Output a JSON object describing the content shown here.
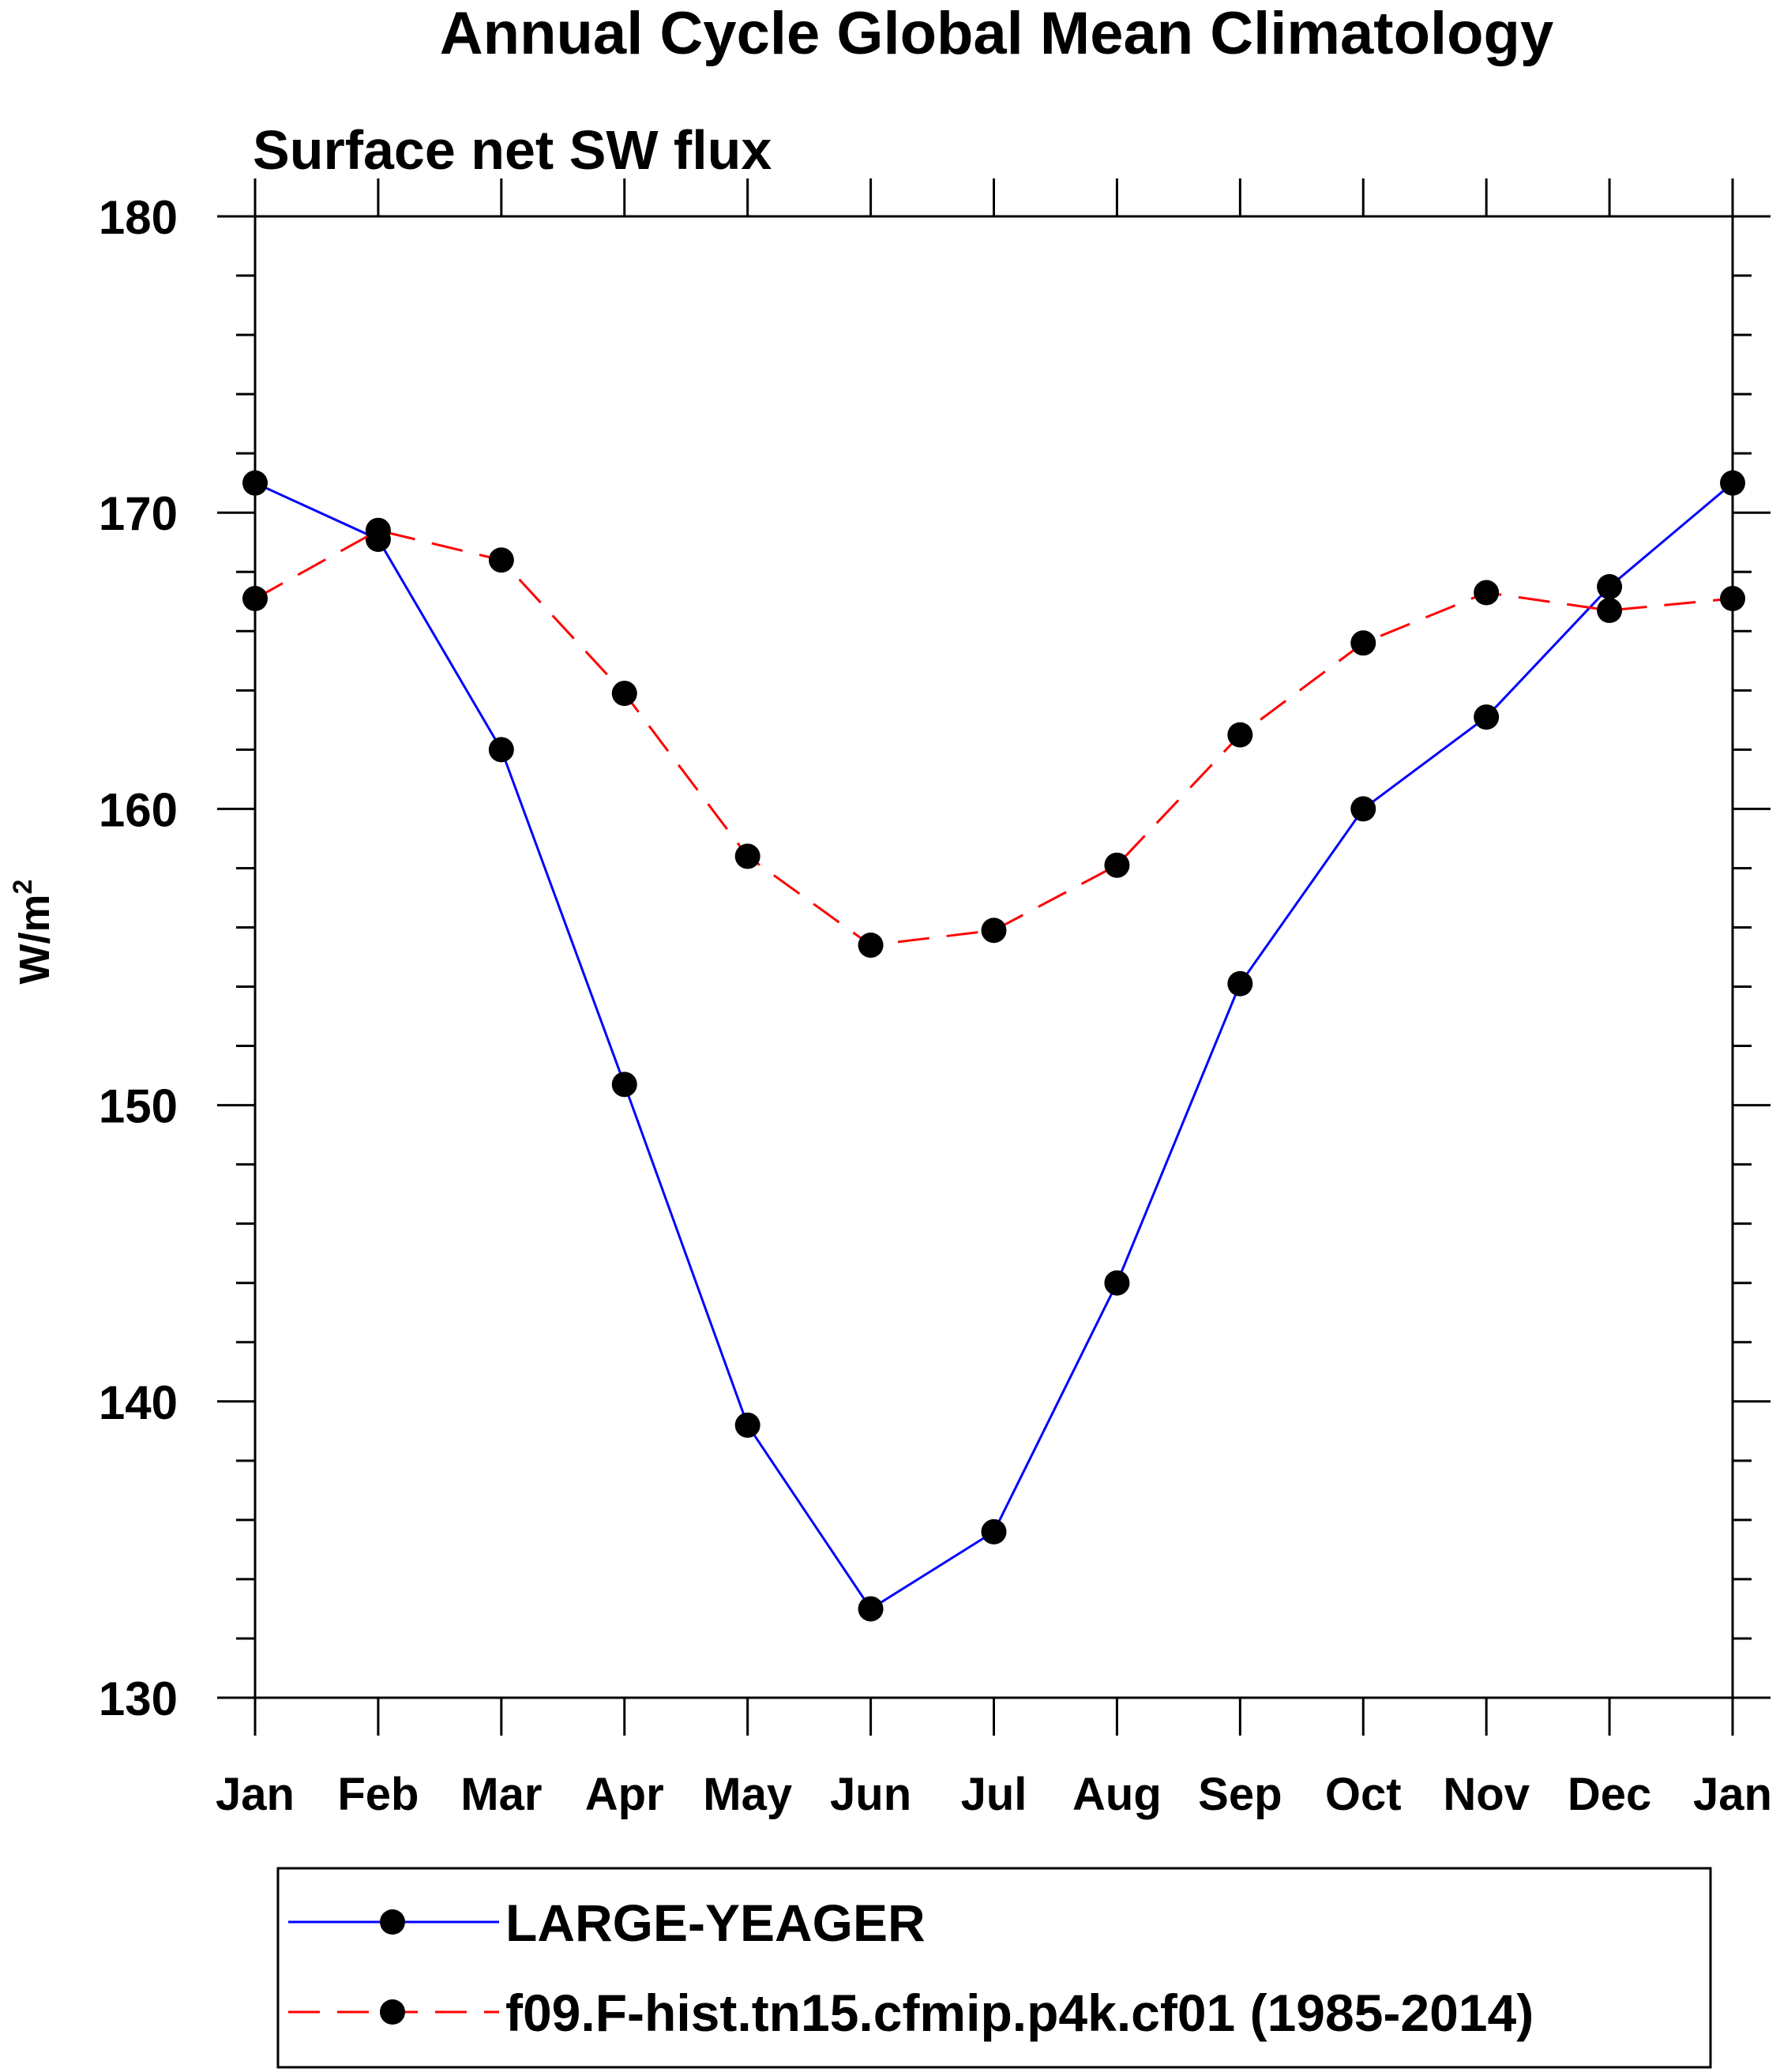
{
  "chart_data": {
    "type": "line",
    "title": "Annual Cycle Global Mean Climatology",
    "subtitle": "Surface net SW flux",
    "xlabel": "",
    "ylabel": "W/m",
    "ylabel_superscript": "2",
    "categories": [
      "Jan",
      "Feb",
      "Mar",
      "Apr",
      "May",
      "Jun",
      "Jul",
      "Aug",
      "Sep",
      "Oct",
      "Nov",
      "Dec",
      "Jan"
    ],
    "ylim": [
      130,
      180
    ],
    "yticks": [
      "130",
      "140",
      "150",
      "160",
      "170",
      "180"
    ],
    "grid": false,
    "legend_position": "bottom",
    "series": [
      {
        "name": "LARGE-YEAGER",
        "color": "#0000ff",
        "line_style": "solid",
        "marker": "filled-circle",
        "values": [
          171.0,
          169.1,
          162.0,
          150.7,
          139.2,
          133.0,
          135.6,
          144.0,
          154.1,
          160.0,
          163.1,
          167.5,
          171.0
        ]
      },
      {
        "name": "f09.F-hist.tn15.cfmip.p4k.cf01 (1985-2014)",
        "color": "#ff0000",
        "line_style": "dashed",
        "marker": "filled-circle",
        "values": [
          167.1,
          169.4,
          168.4,
          163.9,
          158.4,
          155.4,
          155.9,
          158.1,
          162.5,
          165.6,
          167.3,
          166.7,
          167.1
        ]
      }
    ]
  }
}
